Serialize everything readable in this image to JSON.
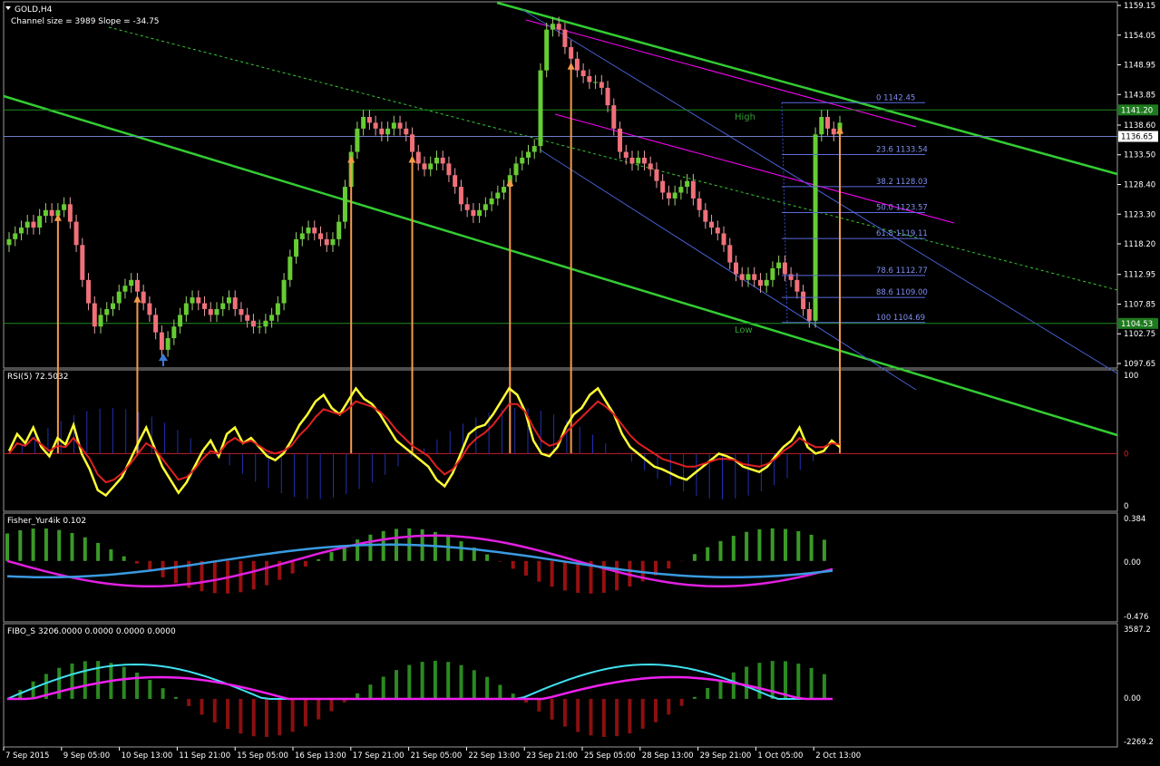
{
  "window": {
    "symbol_label": "GOLD,H4"
  },
  "colors": {
    "background": "#000000",
    "bull": "#66cc33",
    "bear": "#f0707a",
    "channel": "#33cc33",
    "magenta": "#ff00ff",
    "fib": "#5b6bdc",
    "arrow": "#f59a4a",
    "rsi_line": "#ffff33",
    "axis_text": "#ffffff"
  },
  "chart_data": [
    {
      "type": "candlestick",
      "title": "GOLD,H4",
      "subtitle": "Channel size = 3989  Slope = -34.75",
      "ylim": [
        1097.65,
        1159.15
      ],
      "y_ticks": [
        "1159.15",
        "1154.05",
        "1148.95",
        "1143.85",
        "1138.60",
        "1133.50",
        "1128.40",
        "1123.30",
        "1118.20",
        "1112.95",
        "1107.85",
        "1102.75",
        "1097.65"
      ],
      "price_labels": [
        {
          "text": "1141.20",
          "value": 1141.2,
          "bg": "#1e7a1e"
        },
        {
          "text": "1136.65",
          "value": 1136.65,
          "bg": "#ffffff"
        },
        {
          "text": "1104.53",
          "value": 1104.53,
          "bg": "#1e7a1e"
        }
      ],
      "x_labels": [
        "7 Sep 2015",
        "9 Sep 05:00",
        "10 Sep 13:00",
        "11 Sep 21:00",
        "15 Sep 05:00",
        "16 Sep 13:00",
        "17 Sep 21:00",
        "21 Sep 05:00",
        "22 Sep 13:00",
        "23 Sep 21:00",
        "25 Sep 05:00",
        "28 Sep 13:00",
        "29 Sep 21:00",
        "1 Oct 05:00",
        "2 Oct 13:00"
      ],
      "close_series": [
        1119,
        1120,
        1121,
        1122,
        1121,
        1123,
        1124,
        1123,
        1124,
        1125,
        1122,
        1118,
        1112,
        1108,
        1104,
        1106,
        1107,
        1108,
        1110,
        1111,
        1112,
        1110,
        1108,
        1106,
        1103,
        1100,
        1102,
        1104,
        1106,
        1108,
        1109,
        1108,
        1107,
        1106,
        1107,
        1108,
        1109,
        1107,
        1106,
        1105,
        1104,
        1104,
        1105,
        1106,
        1108,
        1112,
        1116,
        1119,
        1120,
        1121,
        1120,
        1119,
        1118,
        1119,
        1122,
        1128,
        1134,
        1138,
        1140,
        1139,
        1138,
        1137,
        1138,
        1139,
        1138,
        1137,
        1134,
        1132,
        1131,
        1132,
        1133,
        1132,
        1130,
        1128,
        1125,
        1124,
        1123,
        1124,
        1125,
        1126,
        1127,
        1128,
        1130,
        1132,
        1133,
        1134,
        1135,
        1148,
        1155,
        1156,
        1155,
        1152,
        1150,
        1148,
        1147,
        1146,
        1146,
        1145,
        1142,
        1138,
        1134,
        1133,
        1132,
        1133,
        1132,
        1131,
        1129,
        1127,
        1126,
        1127,
        1128,
        1129,
        1126,
        1124,
        1122,
        1121,
        1120,
        1118,
        1115,
        1113,
        1112,
        1113,
        1112,
        1111,
        1112,
        1114,
        1115,
        1113,
        1112,
        1110,
        1107,
        1105,
        1137,
        1140,
        1138,
        1137,
        1139
      ],
      "fibonacci": [
        {
          "label": "0 1142.45",
          "value": 1142.45
        },
        {
          "label": "23.6 1133.54",
          "value": 1133.54
        },
        {
          "label": "38.2 1128.03",
          "value": 1128.03
        },
        {
          "label": "50.0 1123.57",
          "value": 1123.57
        },
        {
          "label": "61.8 1119.11",
          "value": 1119.11
        },
        {
          "label": "78.6 1112.77",
          "value": 1112.77
        },
        {
          "label": "88.6 1109.00",
          "value": 1109.0
        },
        {
          "label": "100 1104.69",
          "value": 1104.69
        }
      ],
      "annotations": [
        "High",
        "Low"
      ]
    },
    {
      "type": "line",
      "title": "RSI(5) 72.5032",
      "ylim": [
        0,
        100
      ],
      "y_ticks": [
        "100",
        "0"
      ],
      "level_label": "0",
      "series": [
        {
          "name": "",
          "values": [
            42,
            55,
            48,
            60,
            45,
            38,
            52,
            47,
            62,
            40,
            28,
            12,
            8,
            15,
            22,
            35,
            48,
            60,
            45,
            30,
            20,
            10,
            18,
            30,
            42,
            50,
            38,
            55,
            60,
            48,
            52,
            45,
            38,
            35,
            40,
            50,
            62,
            70,
            80,
            85,
            75,
            70,
            80,
            90,
            82,
            78,
            70,
            60,
            50,
            45,
            40,
            35,
            30,
            20,
            15,
            25,
            40,
            55,
            60,
            62,
            70,
            80,
            90,
            85,
            72,
            50,
            40,
            38,
            45,
            60,
            70,
            75,
            85,
            90,
            80,
            70,
            55,
            45,
            40,
            35,
            30,
            28,
            25,
            22,
            20,
            25,
            30,
            35,
            40,
            38,
            35,
            30,
            28,
            26,
            30,
            38,
            45,
            50,
            60,
            45,
            40,
            42,
            50,
            45
          ]
        },
        {
          "name": "",
          "values": [
            40,
            48,
            46,
            52,
            47,
            42,
            46,
            45,
            52,
            44,
            36,
            24,
            18,
            20,
            25,
            32,
            40,
            48,
            44,
            36,
            28,
            20,
            22,
            28,
            36,
            42,
            40,
            48,
            52,
            48,
            50,
            46,
            42,
            40,
            42,
            46,
            54,
            60,
            68,
            74,
            72,
            70,
            74,
            80,
            78,
            76,
            72,
            66,
            58,
            52,
            46,
            42,
            38,
            30,
            24,
            28,
            36,
            46,
            52,
            56,
            62,
            70,
            78,
            78,
            72,
            60,
            50,
            46,
            48,
            56,
            62,
            68,
            74,
            80,
            76,
            70,
            62,
            54,
            48,
            44,
            40,
            36,
            34,
            32,
            30,
            30,
            32,
            34,
            36,
            36,
            35,
            32,
            31,
            30,
            32,
            36,
            42,
            46,
            52,
            48,
            45,
            45,
            48,
            47
          ]
        }
      ]
    },
    {
      "type": "line",
      "title": "Fisher_Yur4ik 0.102",
      "ylim": [
        -0.476,
        0.384
      ],
      "y_ticks": [
        "0.384",
        "0.00",
        "-0.476"
      ]
    },
    {
      "type": "line",
      "title": "FIBO_S 3206.0000 0.0000 0.0000 0.0000",
      "ylim": [
        -2269.2,
        3587.2
      ],
      "y_ticks": [
        "3587.2",
        "0.00",
        "-2269.2"
      ]
    }
  ]
}
